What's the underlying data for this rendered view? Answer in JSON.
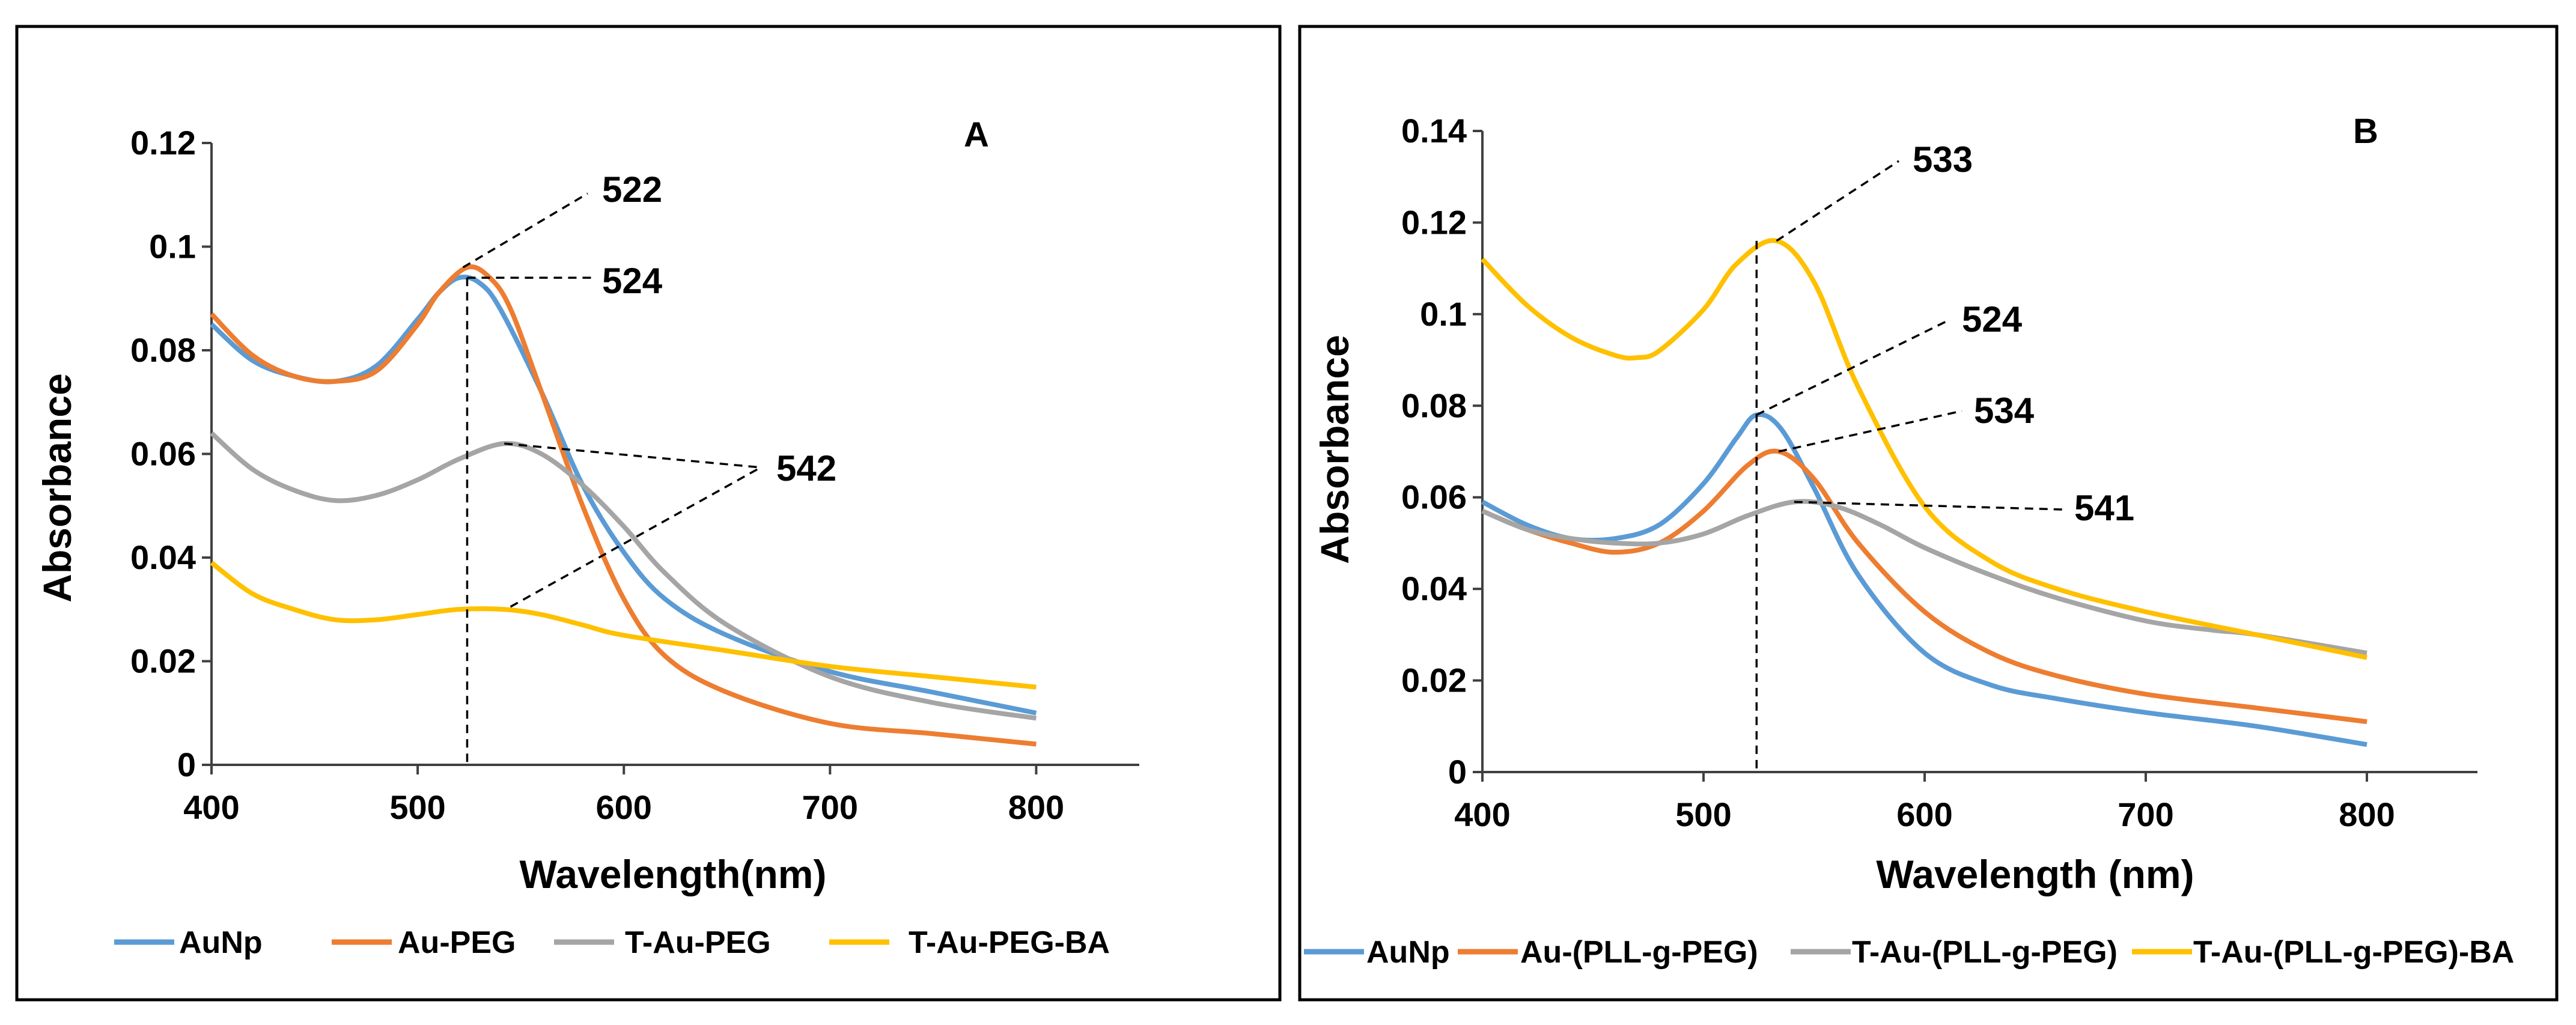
{
  "chart_data": [
    {
      "type": "line",
      "panel_label": "A",
      "xlabel": "Wavelength(nm)",
      "ylabel": "Absorbance",
      "xlim": [
        400,
        850
      ],
      "ylim": [
        0,
        0.12
      ],
      "x_ticks": [
        400,
        500,
        600,
        700,
        800
      ],
      "x_tick_labels": [
        "400",
        "500",
        "600",
        "700",
        "800"
      ],
      "y_ticks": [
        0,
        0.02,
        0.04,
        0.06,
        0.08,
        0.1,
        0.12
      ],
      "y_tick_labels": [
        "0",
        "0.02",
        "0.04",
        "0.06",
        "0.08",
        "0.1",
        "0.12"
      ],
      "grid": false,
      "legend_position": "bottom",
      "series": [
        {
          "name": "AuNp",
          "color": "#5B9BD5",
          "x": [
            400,
            420,
            440,
            460,
            480,
            500,
            510,
            520,
            530,
            540,
            560,
            580,
            600,
            620,
            650,
            700,
            750,
            800
          ],
          "y": [
            0.085,
            0.078,
            0.075,
            0.074,
            0.077,
            0.086,
            0.091,
            0.094,
            0.093,
            0.088,
            0.072,
            0.054,
            0.041,
            0.032,
            0.025,
            0.018,
            0.014,
            0.01
          ]
        },
        {
          "name": "Au-PEG",
          "color": "#ED7D31",
          "x": [
            400,
            420,
            440,
            460,
            480,
            500,
            510,
            524,
            535,
            545,
            560,
            580,
            600,
            620,
            650,
            700,
            750,
            800
          ],
          "y": [
            0.087,
            0.079,
            0.075,
            0.074,
            0.076,
            0.085,
            0.091,
            0.096,
            0.094,
            0.088,
            0.072,
            0.05,
            0.032,
            0.021,
            0.014,
            0.008,
            0.006,
            0.004
          ]
        },
        {
          "name": "T-Au-PEG",
          "color": "#A5A5A5",
          "x": [
            400,
            420,
            440,
            460,
            480,
            500,
            520,
            542,
            560,
            580,
            600,
            620,
            650,
            700,
            750,
            800
          ],
          "y": [
            0.064,
            0.057,
            0.053,
            0.051,
            0.052,
            0.055,
            0.059,
            0.062,
            0.06,
            0.054,
            0.046,
            0.037,
            0.027,
            0.017,
            0.012,
            0.009
          ]
        },
        {
          "name": "T-Au-PEG-BA",
          "color": "#FFC000",
          "x": [
            400,
            420,
            440,
            460,
            480,
            500,
            520,
            542,
            560,
            580,
            600,
            650,
            700,
            750,
            800
          ],
          "y": [
            0.039,
            0.033,
            0.03,
            0.028,
            0.028,
            0.029,
            0.03,
            0.03,
            0.029,
            0.027,
            0.025,
            0.022,
            0.019,
            0.017,
            0.015
          ]
        }
      ],
      "annotations": [
        {
          "text": "522",
          "x": 522,
          "y": 0.096
        },
        {
          "text": "524",
          "x": 524,
          "y": 0.094
        },
        {
          "text": "542",
          "x": 542,
          "y": 0.062
        }
      ]
    },
    {
      "type": "line",
      "panel_label": "B",
      "xlabel": "Wavelength (nm)",
      "ylabel": "Absorbance",
      "xlim": [
        400,
        850
      ],
      "ylim": [
        0,
        0.14
      ],
      "x_ticks": [
        400,
        500,
        600,
        700,
        800
      ],
      "x_tick_labels": [
        "400",
        "500",
        "600",
        "700",
        "800"
      ],
      "y_ticks": [
        0,
        0.02,
        0.04,
        0.06,
        0.08,
        0.1,
        0.12,
        0.14
      ],
      "y_tick_labels": [
        "0",
        "0.02",
        "0.04",
        "0.06",
        "0.08",
        "0.1",
        "0.12",
        "0.14"
      ],
      "grid": false,
      "legend_position": "bottom",
      "series": [
        {
          "name": "AuNp",
          "color": "#5B9BD5",
          "x": [
            400,
            420,
            440,
            460,
            480,
            500,
            515,
            524,
            535,
            550,
            570,
            600,
            630,
            660,
            700,
            750,
            800
          ],
          "y": [
            0.059,
            0.054,
            0.051,
            0.051,
            0.054,
            0.063,
            0.073,
            0.078,
            0.075,
            0.062,
            0.043,
            0.026,
            0.019,
            0.016,
            0.013,
            0.01,
            0.006
          ]
        },
        {
          "name": "Au-(PLL-g-PEG)",
          "color": "#ED7D31",
          "x": [
            400,
            420,
            440,
            460,
            480,
            500,
            520,
            534,
            550,
            570,
            600,
            630,
            660,
            700,
            750,
            800
          ],
          "y": [
            0.057,
            0.053,
            0.05,
            0.048,
            0.05,
            0.057,
            0.067,
            0.07,
            0.064,
            0.05,
            0.035,
            0.026,
            0.021,
            0.017,
            0.014,
            0.011
          ]
        },
        {
          "name": "T-Au-(PLL-g-PEG)",
          "color": "#A5A5A5",
          "x": [
            400,
            420,
            440,
            460,
            480,
            500,
            520,
            541,
            560,
            580,
            600,
            630,
            660,
            700,
            730,
            750,
            800
          ],
          "y": [
            0.057,
            0.053,
            0.051,
            0.05,
            0.05,
            0.052,
            0.056,
            0.059,
            0.058,
            0.054,
            0.049,
            0.043,
            0.038,
            0.033,
            0.031,
            0.03,
            0.026
          ]
        },
        {
          "name": "T-Au-(PLL-g-PEG)-BA",
          "color": "#FFC000",
          "x": [
            400,
            420,
            440,
            460,
            470,
            480,
            500,
            515,
            533,
            550,
            570,
            600,
            630,
            660,
            700,
            750,
            800
          ],
          "y": [
            0.112,
            0.102,
            0.095,
            0.091,
            0.0905,
            0.092,
            0.101,
            0.111,
            0.116,
            0.107,
            0.084,
            0.058,
            0.046,
            0.04,
            0.035,
            0.03,
            0.025
          ]
        }
      ],
      "annotations": [
        {
          "text": "533",
          "x": 533,
          "y": 0.116
        },
        {
          "text": "524",
          "x": 524,
          "y": 0.078
        },
        {
          "text": "534",
          "x": 534,
          "y": 0.07
        },
        {
          "text": "541",
          "x": 541,
          "y": 0.059
        }
      ]
    }
  ]
}
